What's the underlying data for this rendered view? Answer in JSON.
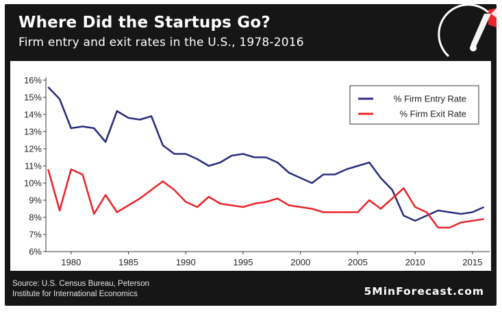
{
  "header": {
    "title": "Where Did the Startups Go?",
    "subtitle": "Firm entry and exit rates in the U.S., 1978-2016"
  },
  "footer": {
    "source_line1": "Source: U.S. Census Bureau, Peterson",
    "source_line2": "Institute for International Economics",
    "brand": "5MinForecast.com"
  },
  "icons": {
    "gauge": "speedometer-gauge-icon"
  },
  "colors": {
    "background": "#161616",
    "entry_series": "#2b2d7e",
    "exit_series": "#e8262b",
    "gauge_accent": "#e8262b"
  },
  "chart_data": {
    "type": "line",
    "title": "Where Did the Startups Go?",
    "subtitle": "Firm entry and exit rates in the U.S., 1978-2016",
    "xlabel": "",
    "ylabel": "",
    "xlim": [
      1977.8,
      2016.5
    ],
    "ylim": [
      6,
      16
    ],
    "x_ticks": [
      1980,
      1985,
      1990,
      1995,
      2000,
      2005,
      2010,
      2015
    ],
    "y_ticks": [
      6,
      7,
      8,
      9,
      10,
      11,
      12,
      13,
      14,
      15,
      16
    ],
    "y_tick_labels": [
      "6%",
      "7%",
      "8%",
      "9%",
      "10%",
      "11%",
      "12%",
      "13%",
      "14%",
      "15%",
      "16%"
    ],
    "grid": false,
    "legend_position": "top-right",
    "x": [
      1978,
      1979,
      1980,
      1981,
      1982,
      1983,
      1984,
      1985,
      1986,
      1987,
      1988,
      1989,
      1990,
      1991,
      1992,
      1993,
      1994,
      1995,
      1996,
      1997,
      1998,
      1999,
      2000,
      2001,
      2002,
      2003,
      2004,
      2005,
      2006,
      2007,
      2008,
      2009,
      2010,
      2011,
      2012,
      2013,
      2014,
      2015,
      2016
    ],
    "series": [
      {
        "name": "% Firm Entry Rate",
        "color": "#2b2d7e",
        "values": [
          15.6,
          14.9,
          13.2,
          13.3,
          13.2,
          12.4,
          14.2,
          13.8,
          13.7,
          13.9,
          12.2,
          11.7,
          11.7,
          11.4,
          11.0,
          11.2,
          11.6,
          11.7,
          11.5,
          11.5,
          11.2,
          10.6,
          10.3,
          10.0,
          10.5,
          10.5,
          10.8,
          11.0,
          11.2,
          10.3,
          9.6,
          8.1,
          7.8,
          8.1,
          8.4,
          8.3,
          8.2,
          8.3,
          8.6
        ]
      },
      {
        "name": "% Firm Exit Rate",
        "color": "#e8262b",
        "values": [
          10.8,
          8.4,
          10.8,
          10.5,
          8.2,
          9.3,
          8.3,
          8.7,
          9.1,
          9.6,
          10.1,
          9.6,
          8.9,
          8.6,
          9.2,
          8.8,
          8.7,
          8.6,
          8.8,
          8.9,
          9.1,
          8.7,
          8.6,
          8.5,
          8.3,
          8.3,
          8.3,
          8.3,
          9.0,
          8.5,
          9.1,
          9.7,
          8.6,
          8.3,
          7.4,
          7.4,
          7.7,
          7.8,
          7.9
        ]
      }
    ]
  }
}
